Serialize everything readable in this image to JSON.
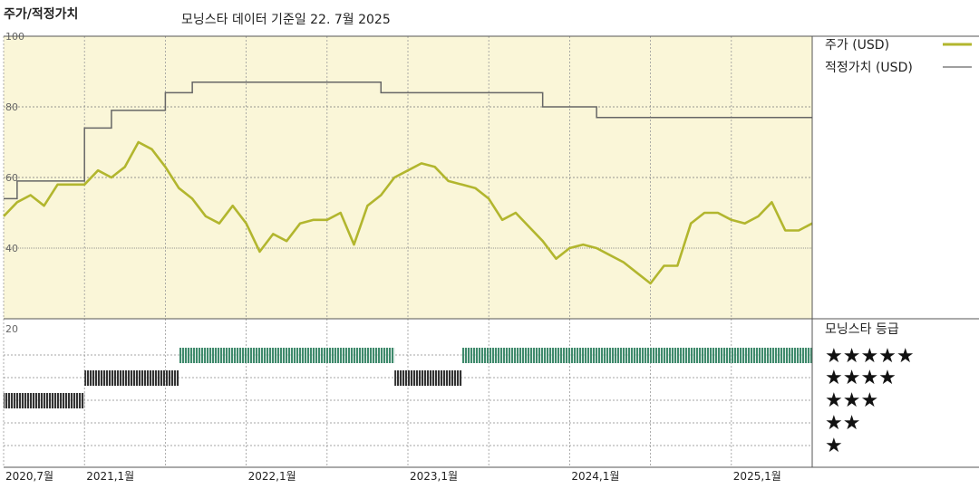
{
  "header": {
    "title": "주가/적정가치",
    "subtitle": "모닝스타 데이터 기준일 22. 7월 2025"
  },
  "legend": {
    "price_label": "주가 (USD)",
    "fair_value_label": "적정가치 (USD)",
    "rating_title": "모닝스타 등급",
    "star_labels": [
      "★★★★★",
      "★★★★",
      "★★★",
      "★★",
      "★"
    ]
  },
  "colors": {
    "price_line": "#b2b62e",
    "fair_value_line": "#666666",
    "plot_background": "#faf6d8",
    "five_star_bar": "#3f8a6c",
    "four_star_bar": "#333333",
    "three_star_bar": "#333333"
  },
  "chart_data": [
    {
      "type": "line",
      "title": "",
      "y_ticks": [
        "100",
        "80",
        "60",
        "40"
      ],
      "ylim": [
        20,
        100
      ],
      "x_labels": [
        "2020,7월",
        "2021,1월",
        "2022,1월",
        "2023,1월",
        "2024,1월",
        "2025,1월"
      ],
      "x_range": [
        "2020-07",
        "2025-07"
      ],
      "grid": true,
      "legend_position": "right",
      "series": [
        {
          "name": "주가 (USD)",
          "x": [
            "2020-07",
            "2020-08",
            "2020-09",
            "2020-10",
            "2020-11",
            "2020-12",
            "2021-01",
            "2021-02",
            "2021-03",
            "2021-04",
            "2021-05",
            "2021-06",
            "2021-07",
            "2021-08",
            "2021-09",
            "2021-10",
            "2021-11",
            "2021-12",
            "2022-01",
            "2022-02",
            "2022-03",
            "2022-04",
            "2022-05",
            "2022-06",
            "2022-07",
            "2022-08",
            "2022-09",
            "2022-10",
            "2022-11",
            "2022-12",
            "2023-01",
            "2023-02",
            "2023-03",
            "2023-04",
            "2023-05",
            "2023-06",
            "2023-07",
            "2023-08",
            "2023-09",
            "2023-10",
            "2023-11",
            "2023-12",
            "2024-01",
            "2024-02",
            "2024-03",
            "2024-04",
            "2024-05",
            "2024-06",
            "2024-07",
            "2024-08",
            "2024-09",
            "2024-10",
            "2024-11",
            "2024-12",
            "2025-01",
            "2025-02",
            "2025-03",
            "2025-04",
            "2025-05",
            "2025-06",
            "2025-07"
          ],
          "values": [
            49,
            53,
            55,
            52,
            58,
            58,
            58,
            62,
            60,
            63,
            70,
            68,
            63,
            57,
            54,
            49,
            47,
            52,
            47,
            39,
            44,
            42,
            47,
            48,
            48,
            50,
            41,
            52,
            55,
            60,
            62,
            64,
            63,
            59,
            58,
            57,
            54,
            48,
            50,
            46,
            42,
            37,
            40,
            41,
            40,
            38,
            36,
            33,
            30,
            35,
            35,
            47,
            50,
            50,
            48,
            47,
            49,
            53,
            45,
            45,
            47
          ]
        },
        {
          "name": "적정가치 (USD)",
          "x": [
            "2020-07",
            "2020-08",
            "2021-01",
            "2021-03",
            "2021-07",
            "2021-09",
            "2022-01",
            "2022-11",
            "2023-01",
            "2023-11",
            "2024-03",
            "2025-07"
          ],
          "values": [
            54,
            59,
            74,
            79,
            84,
            87,
            87,
            84,
            84,
            80,
            77,
            77
          ]
        }
      ]
    },
    {
      "type": "bar",
      "title": "",
      "y_tick": "20",
      "categories": [
        "★★★★★",
        "★★★★",
        "★★★"
      ],
      "periods": [
        {
          "rating": 3,
          "start": "2020-07",
          "end": "2021-01"
        },
        {
          "rating": 4,
          "start": "2021-01",
          "end": "2021-08"
        },
        {
          "rating": 5,
          "start": "2021-08",
          "end": "2022-12"
        },
        {
          "rating": 4,
          "start": "2022-12",
          "end": "2023-05"
        },
        {
          "rating": 5,
          "start": "2023-05",
          "end": "2025-07"
        }
      ]
    }
  ]
}
